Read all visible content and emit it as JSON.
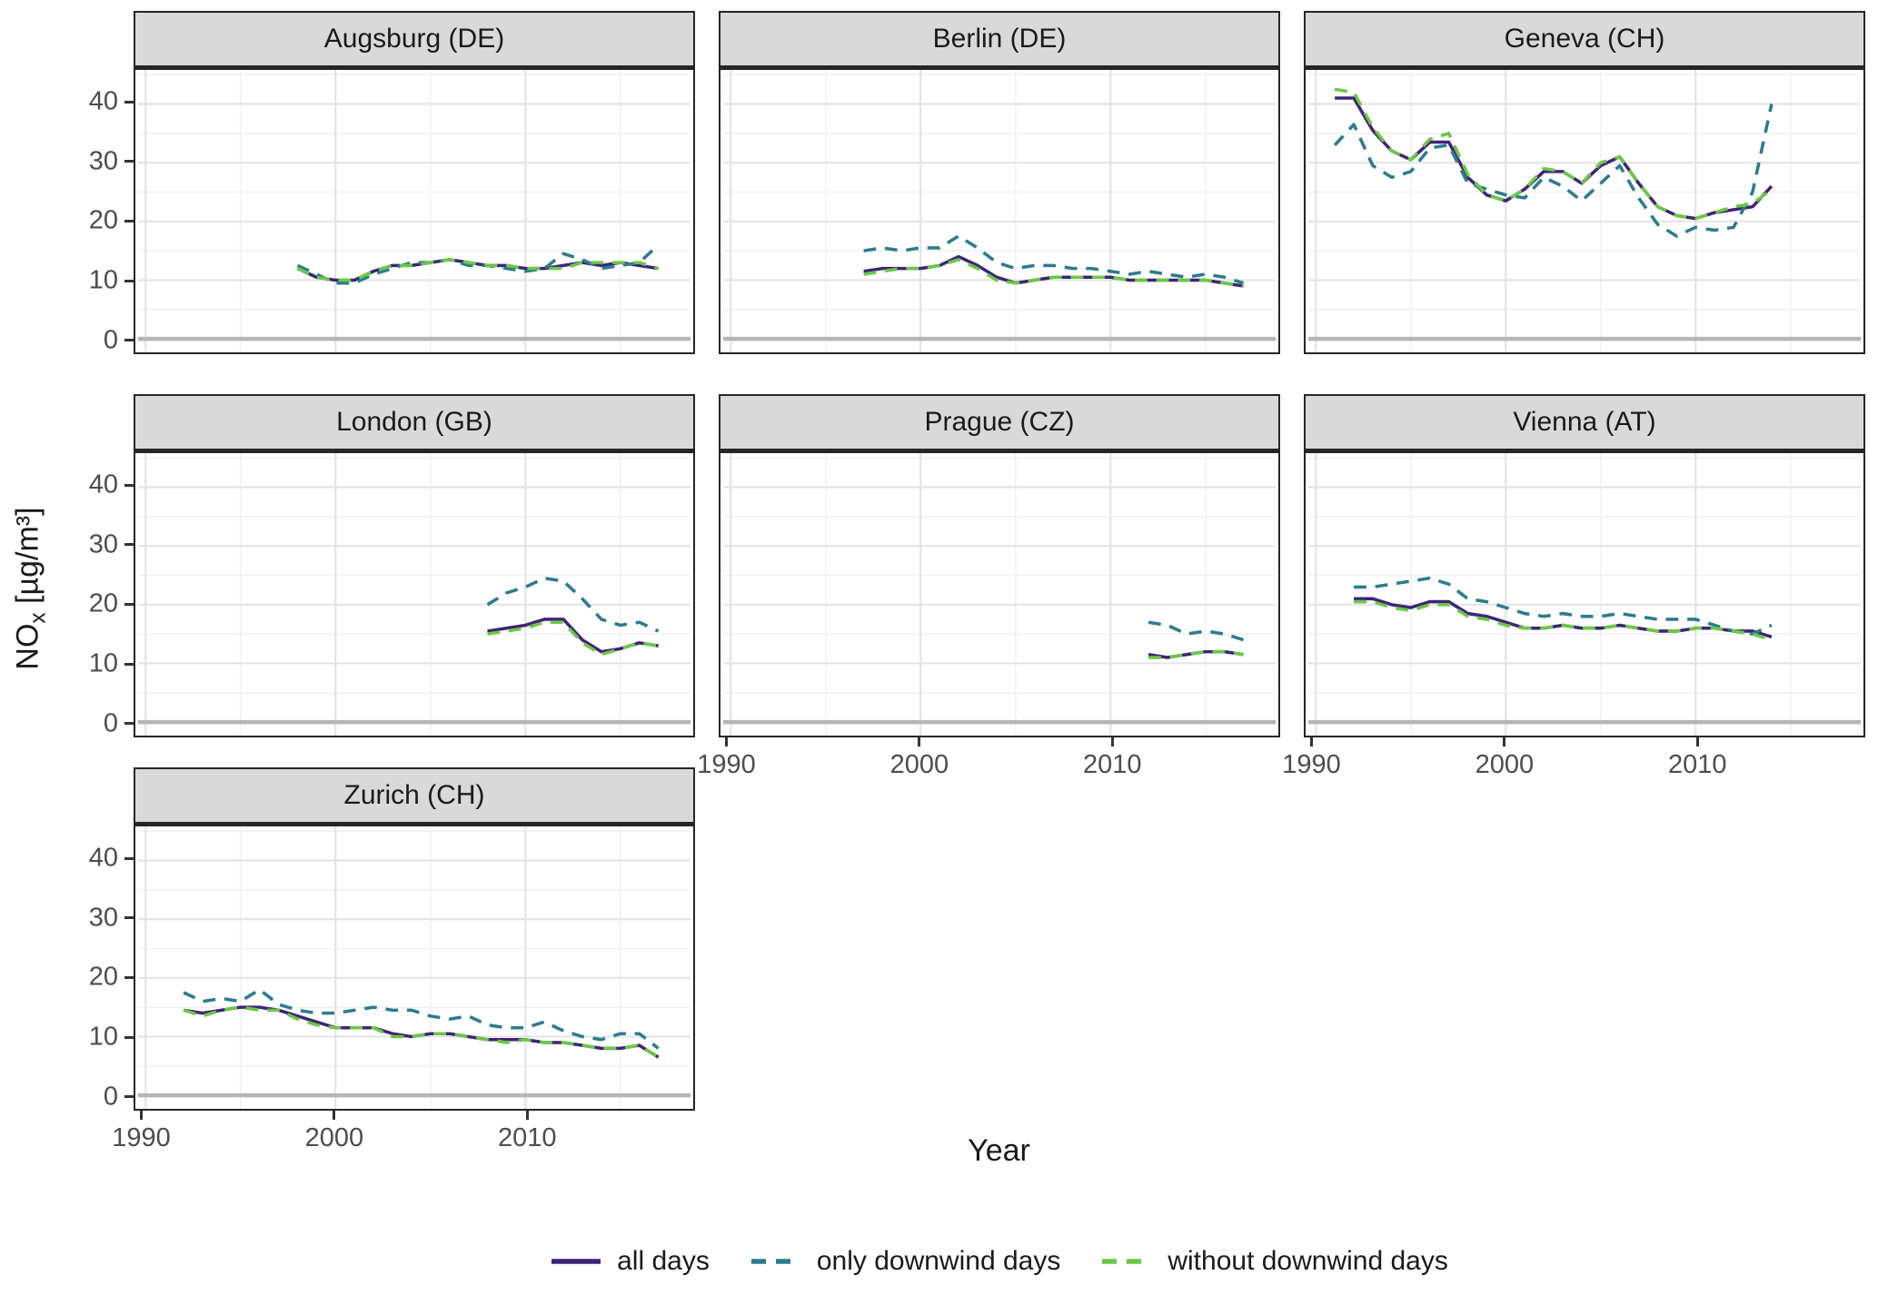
{
  "style": {
    "strip_bg": "#d9d9d9",
    "panel_border": "#262626",
    "grid_major": "#e4e4e4",
    "grid_minor": "#f1f1f1",
    "zero_line": "#b5b5b5",
    "tick_text": "#4d4d4d",
    "text": "#1a1a1a"
  },
  "chart_data": {
    "type": "line",
    "title": "",
    "xlabel": "Year",
    "ylabel": "NOx [µg/m³]",
    "ylabel_parts": {
      "base": "NO",
      "sub": "x",
      "unit": " [µg/m³]"
    },
    "x_ticks": [
      1990,
      2000,
      2010
    ],
    "x_minor_ticks": [
      1995,
      2005,
      2015
    ],
    "y_ticks": [
      0,
      10,
      20,
      30,
      40
    ],
    "y_minor_ticks": [
      5,
      15,
      25,
      35,
      45
    ],
    "xlim": [
      1989.6,
      2018.7
    ],
    "ylim": [
      -2.3,
      45.8
    ],
    "grid": true,
    "legend_position": "bottom",
    "series": [
      {
        "name": "all days",
        "color": "#3f2478",
        "dash": "solid",
        "key": "all_days"
      },
      {
        "name": "only downwind days",
        "color": "#2b7c8e",
        "dash": "dashed",
        "key": "only_downwind_days"
      },
      {
        "name": "without downwind days",
        "color": "#6bc845",
        "dash": "dashed",
        "key": "without_downwind_days"
      }
    ],
    "facets": [
      {
        "title": "Augsburg (DE)",
        "years": [
          1998,
          1999,
          2000,
          2001,
          2002,
          2003,
          2004,
          2005,
          2006,
          2007,
          2008,
          2009,
          2010,
          2011,
          2012,
          2013,
          2014,
          2015,
          2016,
          2017
        ],
        "all_days": [
          12,
          10.5,
          10,
          10,
          11.5,
          12.5,
          12.5,
          13,
          13.5,
          13,
          12.5,
          12.5,
          12,
          12,
          12.5,
          13,
          12.5,
          13,
          12.5,
          12
        ],
        "only_downwind_days": [
          12.5,
          11,
          9.5,
          9.5,
          11,
          12,
          13,
          13,
          13.5,
          12.5,
          12.5,
          12,
          11.5,
          12,
          14.5,
          13.5,
          12,
          12.5,
          13,
          16
        ],
        "without_downwind_days": [
          12,
          10.5,
          10,
          10,
          11.5,
          12.5,
          12.5,
          13,
          13.5,
          13,
          12.5,
          12.5,
          12,
          12,
          12,
          13,
          13,
          13,
          13,
          12
        ]
      },
      {
        "title": "Berlin (DE)",
        "years": [
          1997,
          1998,
          1999,
          2000,
          2001,
          2002,
          2003,
          2004,
          2005,
          2006,
          2007,
          2008,
          2009,
          2010,
          2011,
          2012,
          2013,
          2014,
          2015,
          2016,
          2017
        ],
        "all_days": [
          11.5,
          12,
          12,
          12,
          12.5,
          14,
          12.5,
          10.5,
          9.5,
          10,
          10.5,
          10.5,
          10.5,
          10.5,
          10,
          10,
          10,
          10,
          10,
          9.5,
          9
        ],
        "only_downwind_days": [
          15,
          15.5,
          15,
          15.5,
          15.5,
          17.5,
          15.5,
          13,
          12,
          12.5,
          12.5,
          12,
          12,
          11.5,
          11,
          11.5,
          11,
          10.5,
          11,
          10.5,
          9.5
        ],
        "without_downwind_days": [
          11,
          11.5,
          12,
          12,
          12.5,
          13.5,
          12,
          10,
          9.5,
          10,
          10.5,
          10.5,
          10.5,
          10.5,
          10,
          10,
          10,
          10,
          10,
          9.5,
          9
        ]
      },
      {
        "title": "Geneva (CH)",
        "years": [
          1991,
          1992,
          1993,
          1994,
          1995,
          1996,
          1997,
          1998,
          1999,
          2000,
          2001,
          2002,
          2003,
          2004,
          2005,
          2006,
          2007,
          2008,
          2009,
          2010,
          2011,
          2012,
          2013,
          2014
        ],
        "all_days": [
          41,
          41,
          35.5,
          32,
          30.5,
          33.5,
          33.5,
          27.5,
          24.5,
          23.5,
          25.5,
          28.5,
          28.5,
          26.5,
          29.5,
          31,
          26.5,
          22.5,
          21,
          20.5,
          21.5,
          22,
          22.5,
          26
        ],
        "only_downwind_days": [
          33,
          36.5,
          29.5,
          27.5,
          28.5,
          32.5,
          33,
          26.5,
          25.5,
          24.5,
          24,
          27.5,
          26,
          23.5,
          26.5,
          29.5,
          24,
          19.5,
          17.5,
          19,
          18.5,
          19,
          25,
          40
        ],
        "without_downwind_days": [
          42.5,
          42,
          36,
          32,
          30.5,
          34,
          35,
          28,
          24.5,
          23.5,
          25.5,
          29,
          28.5,
          26.5,
          30,
          31,
          26.5,
          22.5,
          21,
          20.5,
          21.5,
          22.5,
          23,
          25.5
        ]
      },
      {
        "title": "London (GB)",
        "years": [
          2008,
          2009,
          2010,
          2011,
          2012,
          2013,
          2014,
          2015,
          2016,
          2017
        ],
        "all_days": [
          15.5,
          16,
          16.5,
          17.5,
          17.5,
          14,
          12,
          12.5,
          13.5,
          13
        ],
        "only_downwind_days": [
          20,
          22,
          23,
          24.5,
          24,
          21,
          17.5,
          16.5,
          17,
          15.5
        ],
        "without_downwind_days": [
          15,
          15.5,
          16,
          17,
          17,
          13.5,
          11.5,
          12.5,
          13.5,
          13
        ]
      },
      {
        "title": "Prague (CZ)",
        "years": [
          2012,
          2013,
          2014,
          2015,
          2016,
          2017
        ],
        "all_days": [
          11.5,
          11,
          11.5,
          12,
          12,
          11.5
        ],
        "only_downwind_days": [
          17,
          16.5,
          15,
          15.5,
          15,
          14
        ],
        "without_downwind_days": [
          11,
          11,
          11.5,
          12,
          12,
          11.5
        ]
      },
      {
        "title": "Vienna (AT)",
        "years": [
          1992,
          1993,
          1994,
          1995,
          1996,
          1997,
          1998,
          1999,
          2000,
          2001,
          2002,
          2003,
          2004,
          2005,
          2006,
          2007,
          2008,
          2009,
          2010,
          2011,
          2012,
          2013,
          2014
        ],
        "all_days": [
          21,
          21,
          20,
          19.5,
          20.5,
          20.5,
          18.5,
          18,
          17,
          16,
          16,
          16.5,
          16,
          16,
          16.5,
          16,
          15.5,
          15.5,
          16,
          16,
          15.5,
          15.5,
          14.5
        ],
        "only_downwind_days": [
          23,
          23,
          23.5,
          24,
          24.5,
          23.5,
          21,
          20.5,
          19.5,
          18.5,
          18,
          18.5,
          18,
          18,
          18.5,
          18,
          17.5,
          17.5,
          17.5,
          16.5,
          15.5,
          15,
          16.5
        ],
        "without_downwind_days": [
          20.5,
          20.5,
          19.5,
          19,
          20,
          20,
          18,
          17.5,
          16.5,
          16,
          16,
          16.5,
          16,
          16,
          16.5,
          16,
          15.5,
          15.5,
          16,
          16,
          15.5,
          15,
          14
        ]
      },
      {
        "title": "Zurich (CH)",
        "years": [
          1992,
          1993,
          1994,
          1995,
          1996,
          1997,
          1998,
          1999,
          2000,
          2001,
          2002,
          2003,
          2004,
          2005,
          2006,
          2007,
          2008,
          2009,
          2010,
          2011,
          2012,
          2013,
          2014,
          2015,
          2016,
          2017
        ],
        "all_days": [
          14.5,
          14,
          14.5,
          15,
          15,
          14.5,
          13.5,
          12.5,
          11.5,
          11.5,
          11.5,
          10.5,
          10,
          10.5,
          10.5,
          10,
          9.5,
          9.5,
          9.5,
          9,
          9,
          8.5,
          8,
          8,
          8.5,
          6.5
        ],
        "only_downwind_days": [
          17.5,
          16,
          16.5,
          16,
          18,
          15.5,
          14.5,
          14,
          14,
          14.5,
          15,
          14.5,
          14.5,
          13.5,
          13,
          13.5,
          12,
          11.5,
          11.5,
          12.5,
          11,
          10,
          9.5,
          10.5,
          10.5,
          8
        ],
        "without_downwind_days": [
          14.5,
          13.5,
          14.5,
          15,
          14.5,
          14.5,
          13,
          12,
          11.5,
          11.5,
          11.5,
          10,
          10,
          10.5,
          10.5,
          10,
          9.5,
          9,
          9.5,
          9,
          9,
          8.5,
          8,
          8,
          8.5,
          6.5
        ]
      }
    ]
  }
}
